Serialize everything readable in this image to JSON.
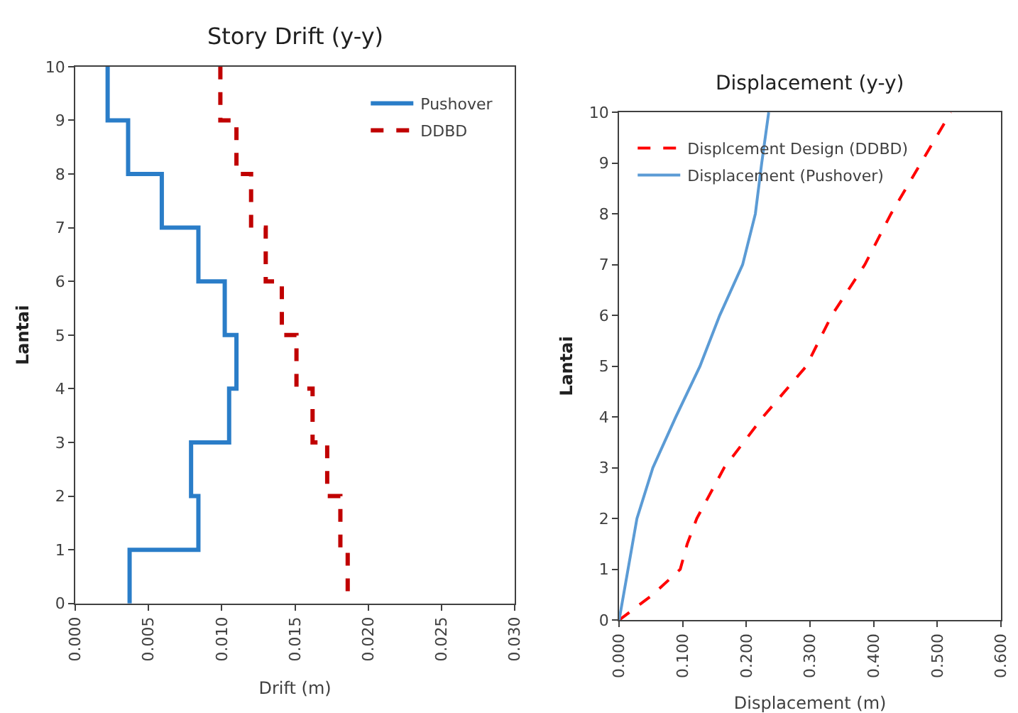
{
  "chart_data": [
    {
      "type": "line",
      "title": "Story Drift (y-y)",
      "xlabel": "Drift (m)",
      "ylabel": "Lantai",
      "xlim": [
        0,
        0.03
      ],
      "xticks": [
        {
          "value": 0,
          "label": "0.000"
        },
        {
          "value": 0.005,
          "label": "0.005"
        },
        {
          "value": 0.01,
          "label": "0.010"
        },
        {
          "value": 0.015,
          "label": "0.015"
        },
        {
          "value": 0.02,
          "label": "0.020"
        },
        {
          "value": 0.025,
          "label": "0.025"
        },
        {
          "value": 0.03,
          "label": "0.030"
        }
      ],
      "ylim": [
        0,
        10
      ],
      "yticks": [
        0,
        1,
        2,
        3,
        4,
        5,
        6,
        7,
        8,
        9,
        10
      ],
      "legend": "top right",
      "marker": "none",
      "series": [
        {
          "name": "Pushover",
          "color": "#2a7dc8",
          "line_style": "solid",
          "x": [
            0.0022,
            0.0022,
            0.0036,
            0.0036,
            0.0059,
            0.0059,
            0.0084,
            0.0084,
            0.0102,
            0.0102,
            0.011,
            0.011,
            0.0105,
            0.0105,
            0.0079,
            0.0079,
            0.0084,
            0.0084,
            0.0037,
            0.0037
          ],
          "values": [
            10,
            9,
            9,
            8,
            8,
            7,
            7,
            6,
            6,
            5,
            5,
            4,
            4,
            3,
            3,
            2,
            2,
            1,
            1,
            0
          ]
        },
        {
          "name": "DDBD",
          "color": "#c00000",
          "line_style": "dashed",
          "x": [
            0.0099,
            0.0099,
            0.011,
            0.011,
            0.012,
            0.012,
            0.013,
            0.013,
            0.0141,
            0.0141,
            0.0151,
            0.0151,
            0.0162,
            0.0162,
            0.0172,
            0.0172,
            0.0181,
            0.0181,
            0.0186,
            0.0186
          ],
          "values": [
            10,
            9,
            9,
            8,
            8,
            7,
            7,
            6,
            6,
            5,
            5,
            4,
            4,
            3,
            3,
            2,
            2,
            1,
            1,
            0
          ]
        }
      ]
    },
    {
      "type": "line",
      "title": "Displacement (y-y)",
      "xlabel": "Displacement (m)",
      "ylabel": "Lantai",
      "xlim": [
        0,
        0.6
      ],
      "xticks": [
        {
          "value": 0,
          "label": "0.000"
        },
        {
          "value": 0.1,
          "label": "0.100"
        },
        {
          "value": 0.2,
          "label": "0.200"
        },
        {
          "value": 0.3,
          "label": "0.300"
        },
        {
          "value": 0.4,
          "label": "0.400"
        },
        {
          "value": 0.5,
          "label": "0.500"
        },
        {
          "value": 0.6,
          "label": "0.600"
        }
      ],
      "ylim": [
        0,
        10
      ],
      "yticks": [
        0,
        1,
        2,
        3,
        4,
        5,
        6,
        7,
        8,
        9,
        10
      ],
      "legend": "top left",
      "marker": "none",
      "series": [
        {
          "name": "Displcement Design (DDBD)",
          "color": "#ff0000",
          "line_style": "dashed",
          "x": [
            0,
            0.053,
            0.096,
            0.107,
            0.122,
            0.165,
            0.226,
            0.294,
            0.334,
            0.386,
            0.427,
            0.474,
            0.521
          ],
          "values": [
            0,
            0.5,
            1,
            1.5,
            2,
            3,
            4,
            5,
            6,
            7,
            8,
            9,
            10
          ]
        },
        {
          "name": "Displacement (Pushover)",
          "color": "#5b9bd5",
          "line_style": "solid",
          "x": [
            0,
            0.014,
            0.028,
            0.053,
            0.089,
            0.127,
            0.158,
            0.194,
            0.214,
            0.224,
            0.235
          ],
          "values": [
            0,
            1,
            2,
            3,
            4,
            5,
            6,
            7,
            8,
            9,
            10
          ]
        }
      ]
    }
  ]
}
